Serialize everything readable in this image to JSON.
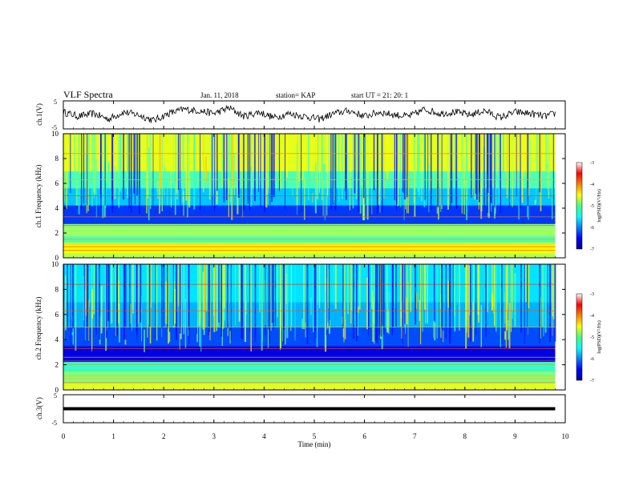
{
  "header": {
    "title": "VLF Spectra",
    "date": "Jan. 11, 2018",
    "station": "station= KAP",
    "start": "start  UT =   21: 20: 1"
  },
  "chart_data": [
    {
      "type": "line",
      "panel": "ch1-waveform",
      "ylabel": "ch.1(V)",
      "ylim": [
        -5,
        5
      ],
      "yticks": [
        "5",
        "-5"
      ],
      "xlim": [
        0,
        10
      ],
      "series": [
        {
          "x": [
            0.0,
            0.3,
            0.6,
            0.9,
            1.2,
            1.5,
            1.8,
            2.1,
            2.4,
            2.7,
            3.0,
            3.3,
            3.6,
            3.9,
            4.2,
            4.5,
            4.8,
            5.1,
            5.4,
            5.7,
            6.0,
            6.3,
            6.6,
            6.9,
            7.2,
            7.5,
            7.8,
            8.1,
            8.4,
            8.7,
            9.0,
            9.3,
            9.6,
            9.8
          ],
          "values": [
            1.0,
            -0.5,
            0.5,
            -1.5,
            1.0,
            0.0,
            -2.0,
            0.5,
            2.0,
            1.5,
            0.5,
            2.5,
            -0.5,
            1.0,
            -1.0,
            0.5,
            -0.5,
            -1.5,
            0.5,
            1.5,
            -0.5,
            1.0,
            0.0,
            -0.5,
            2.0,
            0.5,
            1.0,
            0.0,
            1.5,
            -1.0,
            1.0,
            0.5,
            -0.5,
            0.5
          ]
        }
      ]
    },
    {
      "type": "heatmap",
      "panel": "ch1-spectrogram",
      "ylabel": "ch.1 Frequency (kHz)",
      "ylim": [
        0,
        10
      ],
      "yticks": [
        "0",
        "2",
        "4",
        "6",
        "8",
        "10"
      ],
      "xlim": [
        0,
        10
      ],
      "colorbar": {
        "label": "log(PSD)(V²/Hz)",
        "range": [
          -7,
          -3
        ],
        "ticks": [
          "-3",
          "-4",
          "-5",
          "-6",
          "-7"
        ]
      }
    },
    {
      "type": "heatmap",
      "panel": "ch2-spectrogram",
      "ylabel": "ch.2 Frequency (kHz)",
      "ylim": [
        0,
        10
      ],
      "yticks": [
        "0",
        "2",
        "4",
        "6",
        "8",
        "10"
      ],
      "xlim": [
        0,
        10
      ],
      "colorbar": {
        "label": "log(PSD)(V²/Hz)",
        "range": [
          -7,
          -3
        ],
        "ticks": [
          "-3",
          "-4",
          "-5",
          "-6",
          "-7"
        ]
      }
    },
    {
      "type": "line",
      "panel": "ch3-waveform",
      "ylabel": "ch.3(V)",
      "ylim": [
        -5,
        5
      ],
      "yticks": [
        "5",
        "-5"
      ],
      "xlim": [
        0,
        10
      ],
      "series": [
        {
          "x": [
            0,
            9.8
          ],
          "values": [
            0,
            0
          ]
        }
      ]
    }
  ],
  "xaxis": {
    "label": "Time  (min)",
    "ticks": [
      "0",
      "1",
      "2",
      "3",
      "4",
      "5",
      "6",
      "7",
      "8",
      "9",
      "10"
    ]
  }
}
